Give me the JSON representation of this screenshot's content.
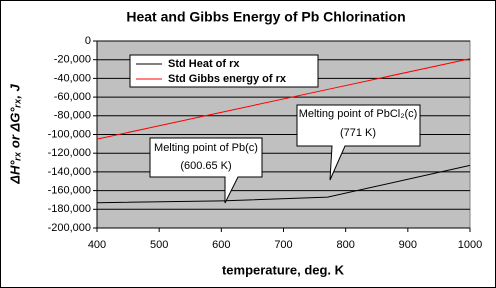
{
  "chart_data": {
    "type": "line",
    "title": "Heat and Gibbs Energy of Pb Chlorination",
    "x_label": "temperature, deg. K",
    "y_label": "ΔH°ᵣₓ or ΔG°ᵣₓ, J",
    "x": [
      400,
      600.65,
      771,
      1000
    ],
    "series": [
      {
        "name": "Std Heat of rx",
        "color": "#000000",
        "values": [
          -173000,
          -171000,
          -167000,
          -133000
        ]
      },
      {
        "name": "Std Gibbs energy of rx",
        "color": "#ff0000",
        "values": [
          -105000,
          -76200,
          -51800,
          -19000
        ]
      }
    ],
    "xlim": [
      400,
      1000
    ],
    "xticks": [
      400,
      500,
      600,
      700,
      800,
      900,
      1000
    ],
    "ylim": [
      -200000,
      0
    ],
    "yticks": [
      {
        "value": -200000,
        "label": "-200,000"
      },
      {
        "value": -180000,
        "label": "-180,000"
      },
      {
        "value": -160000,
        "label": "-160,000"
      },
      {
        "value": -140000,
        "label": "-140,000"
      },
      {
        "value": -120000,
        "label": "-120,000"
      },
      {
        "value": -100000,
        "label": "-100,000"
      },
      {
        "value": -80000,
        "label": "-80,000"
      },
      {
        "value": -60000,
        "label": "-60,000"
      },
      {
        "value": -40000,
        "label": "-40,000"
      },
      {
        "value": -20000,
        "label": "-20,000"
      },
      0
    ],
    "grid": true,
    "legend": "top-left",
    "annotations": [
      [
        "Melting point of Pb(c)",
        "(600.65 K)"
      ],
      [
        "Melting point of PbCl₂(c)",
        "(771 K)"
      ]
    ]
  }
}
